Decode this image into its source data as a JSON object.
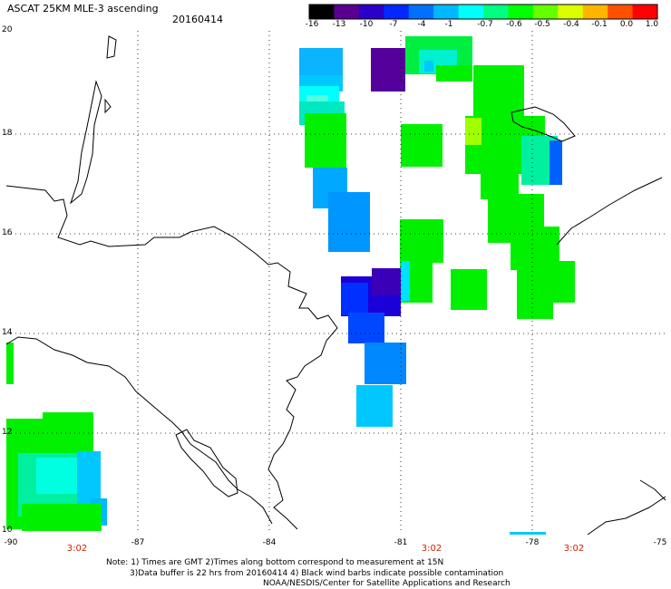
{
  "title": "ASCAT 25KM MLE-3 ascending",
  "date": "20160414",
  "colorbar": {
    "ticks": [
      "-16",
      "-13",
      "-10",
      "-7",
      "-4",
      "-1",
      "-0.7",
      "-0.6",
      "-0.5",
      "-0.4",
      "-0.1",
      "0.0",
      "1.0"
    ],
    "colors": [
      "#000000",
      "#5a0090",
      "#2a00c8",
      "#0028ff",
      "#0070ff",
      "#00b8ff",
      "#00ffff",
      "#00ff80",
      "#00ff00",
      "#66ff00",
      "#dcff00",
      "#ffb400",
      "#ff5000",
      "#ff0000"
    ]
  },
  "lat_labels": [
    "20",
    "18",
    "16",
    "14",
    "12",
    "10"
  ],
  "lon_labels": [
    "-90",
    "-87",
    "-84",
    "-81",
    "-78",
    "-75"
  ],
  "time_labels": [
    "3:02",
    "3:02",
    "3:02"
  ],
  "notes": [
    "Note: 1) Times are GMT 2)Times along bottom correspond to measurement at 15N",
    "3)Data buffer is 22 hrs from 20160414 4) Black wind barbs indicate possible contamination",
    "NOAA/NESDIS/Center for Satellite Applications and Research"
  ]
}
